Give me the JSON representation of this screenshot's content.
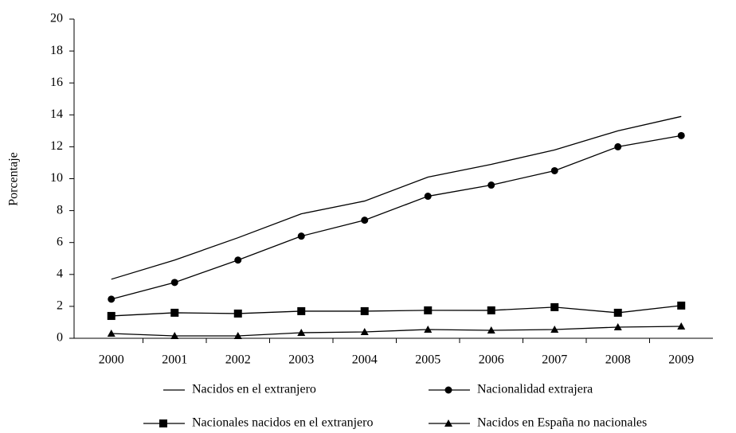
{
  "chart_data": {
    "type": "line",
    "y_label": "Porcentaje",
    "categories": [
      "2000",
      "2001",
      "2002",
      "2003",
      "2004",
      "2005",
      "2006",
      "2007",
      "2008",
      "2009"
    ],
    "series": [
      {
        "name": "Nacidos en el extranjero",
        "color": "#000000",
        "marker": "none",
        "values": [
          3.7,
          4.9,
          6.3,
          7.8,
          8.6,
          10.1,
          10.9,
          11.8,
          13.0,
          13.9
        ]
      },
      {
        "name": "Nacionalidad extrajera",
        "color": "#000000",
        "marker": "circle",
        "values": [
          2.45,
          3.5,
          4.9,
          6.4,
          7.4,
          8.9,
          9.6,
          10.5,
          12.0,
          12.7
        ]
      },
      {
        "name": "Nacionales nacidos en el extranjero",
        "color": "#000000",
        "marker": "square",
        "values": [
          1.4,
          1.6,
          1.55,
          1.7,
          1.7,
          1.75,
          1.75,
          1.95,
          1.6,
          2.05
        ]
      },
      {
        "name": "Nacidos en España no nacionales",
        "color": "#000000",
        "marker": "triangle",
        "values": [
          0.3,
          0.15,
          0.15,
          0.35,
          0.4,
          0.55,
          0.5,
          0.55,
          0.7,
          0.75
        ]
      }
    ],
    "ylim": [
      0,
      20
    ],
    "yticks": [
      0,
      2,
      4,
      6,
      8,
      10,
      12,
      14,
      16,
      18,
      20
    ],
    "grid": false,
    "legend": "bottom"
  }
}
